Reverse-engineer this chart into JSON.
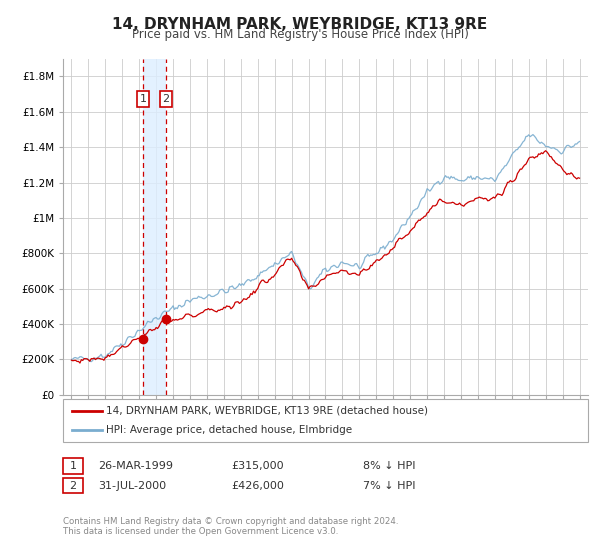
{
  "title": "14, DRYNHAM PARK, WEYBRIDGE, KT13 9RE",
  "subtitle": "Price paid vs. HM Land Registry's House Price Index (HPI)",
  "background_color": "#ffffff",
  "plot_bg_color": "#ffffff",
  "grid_color": "#cccccc",
  "x_start": 1994.5,
  "x_end": 2025.5,
  "y_max": 1900000,
  "yticks": [
    0,
    200000,
    400000,
    600000,
    800000,
    1000000,
    1200000,
    1400000,
    1600000,
    1800000
  ],
  "ytick_labels": [
    "£0",
    "£200K",
    "£400K",
    "£600K",
    "£800K",
    "£1M",
    "£1.2M",
    "£1.4M",
    "£1.6M",
    "£1.8M"
  ],
  "xticks": [
    1995,
    1996,
    1997,
    1998,
    1999,
    2000,
    2001,
    2002,
    2003,
    2004,
    2005,
    2006,
    2007,
    2008,
    2009,
    2010,
    2011,
    2012,
    2013,
    2014,
    2015,
    2016,
    2017,
    2018,
    2019,
    2020,
    2021,
    2022,
    2023,
    2024,
    2025
  ],
  "transaction1_date": 1999.23,
  "transaction1_price": 315000,
  "transaction1_label": "26-MAR-1999",
  "transaction1_price_str": "£315,000",
  "transaction1_hpi": "8% ↓ HPI",
  "transaction2_date": 2000.58,
  "transaction2_price": 426000,
  "transaction2_label": "31-JUL-2000",
  "transaction2_price_str": "£426,000",
  "transaction2_hpi": "7% ↓ HPI",
  "red_line_color": "#cc0000",
  "blue_line_color": "#7aadcf",
  "vline_color": "#cc0000",
  "shade_color": "#ddeeff",
  "legend1_label": "14, DRYNHAM PARK, WEYBRIDGE, KT13 9RE (detached house)",
  "legend2_label": "HPI: Average price, detached house, Elmbridge",
  "footer1": "Contains HM Land Registry data © Crown copyright and database right 2024.",
  "footer2": "This data is licensed under the Open Government Licence v3.0."
}
